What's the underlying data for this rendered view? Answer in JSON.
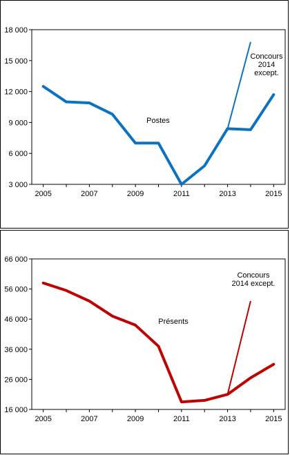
{
  "chart_data": [
    {
      "type": "line",
      "x": [
        2005,
        2006,
        2007,
        2008,
        2009,
        2010,
        2011,
        2012,
        2013,
        2014,
        2015
      ],
      "series": [
        {
          "name": "Postes",
          "values": [
            12500,
            11000,
            10900,
            9800,
            7000,
            7000,
            3000,
            4800,
            8400,
            8300,
            11700
          ]
        }
      ],
      "extra_series": [
        {
          "name": "Concours 2014 except.",
          "x": [
            2013,
            2014
          ],
          "values": [
            8400,
            16800
          ]
        }
      ],
      "ylim": [
        3000,
        18000
      ],
      "yticks": [
        3000,
        6000,
        9000,
        12000,
        15000,
        18000
      ],
      "ytick_labels": [
        "3 000",
        "6 000",
        "9 000",
        "12 000",
        "15 000",
        "18 000"
      ],
      "xticks": [
        2005,
        2007,
        2009,
        2011,
        2013,
        2015
      ],
      "xtick_labels": [
        "2005",
        "2007",
        "2009",
        "2011",
        "2013",
        "2015"
      ],
      "annotations": {
        "series_label": "Postes",
        "extra_label_lines": [
          "Concours",
          "2014",
          "except."
        ]
      },
      "colors": {
        "series": "#0a72c0",
        "extra": "#0a72c0"
      }
    },
    {
      "type": "line",
      "x": [
        2005,
        2006,
        2007,
        2008,
        2009,
        2010,
        2011,
        2012,
        2013,
        2014,
        2015
      ],
      "series": [
        {
          "name": "Présents",
          "values": [
            58000,
            55500,
            52000,
            47000,
            44000,
            37000,
            18500,
            19000,
            21000,
            26500,
            31000
          ]
        }
      ],
      "extra_series": [
        {
          "name": "Concours 2014 except.",
          "x": [
            2013,
            2014
          ],
          "values": [
            21000,
            52000
          ]
        }
      ],
      "ylim": [
        16000,
        66000
      ],
      "yticks": [
        16000,
        26000,
        36000,
        46000,
        56000,
        66000
      ],
      "ytick_labels": [
        "16 000",
        "26 000",
        "36 000",
        "46 000",
        "56 000",
        "66 000"
      ],
      "xticks": [
        2005,
        2007,
        2009,
        2011,
        2013,
        2015
      ],
      "xtick_labels": [
        "2005",
        "2007",
        "2009",
        "2011",
        "2013",
        "2015"
      ],
      "annotations": {
        "series_label": "Présents",
        "extra_label_lines": [
          "Concours",
          "2014 except."
        ]
      },
      "colors": {
        "series": "#c00000",
        "extra": "#c00000"
      }
    }
  ]
}
